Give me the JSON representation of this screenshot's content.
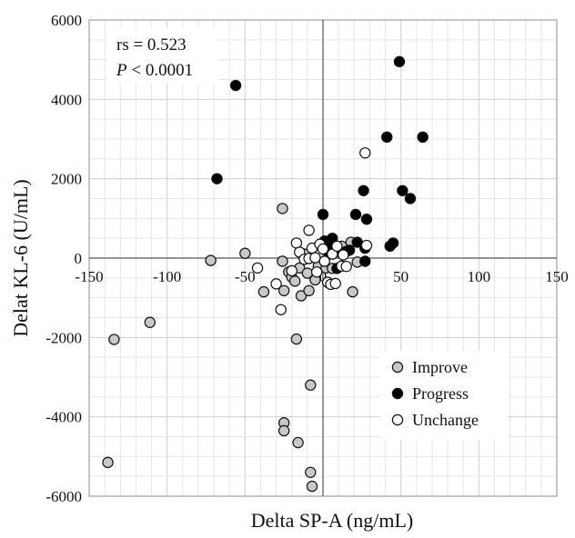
{
  "chart_data": {
    "type": "scatter",
    "xlabel": "Delta SP-A (ng/mL)",
    "ylabel": "Delat  KL-6 (U/mL)",
    "xlim": [
      -150,
      150
    ],
    "ylim": [
      -6000,
      6000
    ],
    "x_ticks": [
      -150,
      -100,
      -50,
      0,
      50,
      100,
      150
    ],
    "y_ticks": [
      -6000,
      -4000,
      -2000,
      0,
      2000,
      4000,
      6000
    ],
    "grid": true,
    "legend_position": "bottom-right",
    "annotation": {
      "rs_text": "rs = 0.523",
      "p_symbol": "P",
      "p_rest": " < 0.0001"
    },
    "series": [
      {
        "name": "Improve",
        "fill": "#c8c8c8",
        "points": [
          [
            -138,
            -5150
          ],
          [
            -134,
            -2050
          ],
          [
            -111,
            -1620
          ],
          [
            -72,
            -60
          ],
          [
            -50,
            120
          ],
          [
            -26,
            1250
          ],
          [
            -26,
            -80
          ],
          [
            -25,
            -820
          ],
          [
            -22,
            -350
          ],
          [
            -20,
            -480
          ],
          [
            -18,
            -580
          ],
          [
            -17,
            -2040
          ],
          [
            -15,
            -250
          ],
          [
            -14,
            -950
          ],
          [
            -12,
            100
          ],
          [
            -10,
            -380
          ],
          [
            -9,
            -820
          ],
          [
            -8,
            -3200
          ],
          [
            -8,
            -5400
          ],
          [
            -7,
            -5750
          ],
          [
            -25,
            -4150
          ],
          [
            -25,
            -4350
          ],
          [
            -16,
            -4650
          ],
          [
            -5,
            -550
          ],
          [
            -3,
            -200
          ],
          [
            2,
            -250
          ],
          [
            6,
            -260
          ],
          [
            12,
            300
          ],
          [
            18,
            400
          ],
          [
            19,
            -850
          ],
          [
            22,
            -100
          ],
          [
            -38,
            -850
          ]
        ]
      },
      {
        "name": "Progress",
        "fill": "#000000",
        "points": [
          [
            -68,
            2000
          ],
          [
            -56,
            4350
          ],
          [
            0,
            1100
          ],
          [
            1,
            430
          ],
          [
            4,
            100
          ],
          [
            5,
            350
          ],
          [
            6,
            500
          ],
          [
            9,
            -260
          ],
          [
            12,
            120
          ],
          [
            15,
            170
          ],
          [
            17,
            200
          ],
          [
            21,
            1100
          ],
          [
            22,
            400
          ],
          [
            26,
            1700
          ],
          [
            27,
            250
          ],
          [
            27,
            -80
          ],
          [
            28,
            980
          ],
          [
            41,
            3050
          ],
          [
            43,
            300
          ],
          [
            45,
            380
          ],
          [
            49,
            4950
          ],
          [
            51,
            1700
          ],
          [
            56,
            1500
          ],
          [
            64,
            3050
          ]
        ]
      },
      {
        "name": "Unchange",
        "fill": "#ffffff",
        "points": [
          [
            -42,
            -250
          ],
          [
            -30,
            -650
          ],
          [
            -27,
            -1300
          ],
          [
            -20,
            -320
          ],
          [
            -17,
            380
          ],
          [
            -15,
            150
          ],
          [
            -12,
            -30
          ],
          [
            -9,
            700
          ],
          [
            -9,
            -10
          ],
          [
            -7,
            250
          ],
          [
            -5,
            10
          ],
          [
            -4,
            -350
          ],
          [
            -2,
            350
          ],
          [
            0,
            230
          ],
          [
            1,
            -80
          ],
          [
            3,
            -610
          ],
          [
            5,
            -660
          ],
          [
            6,
            100
          ],
          [
            8,
            -640
          ],
          [
            9,
            300
          ],
          [
            12,
            -200
          ],
          [
            13,
            80
          ],
          [
            15,
            -210
          ],
          [
            27,
            2650
          ],
          [
            28,
            320
          ]
        ]
      }
    ]
  }
}
